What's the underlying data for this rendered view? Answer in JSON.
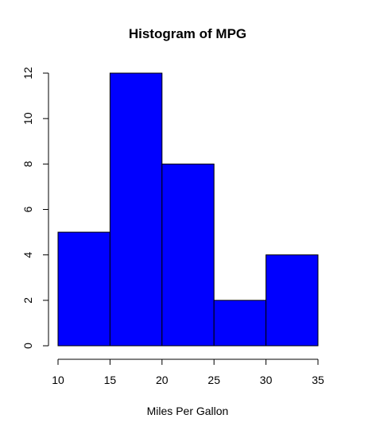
{
  "chart_data": {
    "type": "bar",
    "title": "Histogram of MPG",
    "xlabel": "Miles Per Gallon",
    "ylabel": "",
    "bins": [
      {
        "x0": 10,
        "x1": 15,
        "count": 5
      },
      {
        "x0": 15,
        "x1": 20,
        "count": 12
      },
      {
        "x0": 20,
        "x1": 25,
        "count": 8
      },
      {
        "x0": 25,
        "x1": 30,
        "count": 2
      },
      {
        "x0": 30,
        "x1": 35,
        "count": 4
      }
    ],
    "xticks": [
      10,
      15,
      20,
      25,
      30,
      35
    ],
    "yticks": [
      0,
      2,
      4,
      6,
      8,
      10,
      12
    ],
    "xlim": [
      10,
      35
    ],
    "ylim": [
      0,
      12
    ],
    "bar_color": "#0000ff",
    "grid": false,
    "legend": "none"
  }
}
